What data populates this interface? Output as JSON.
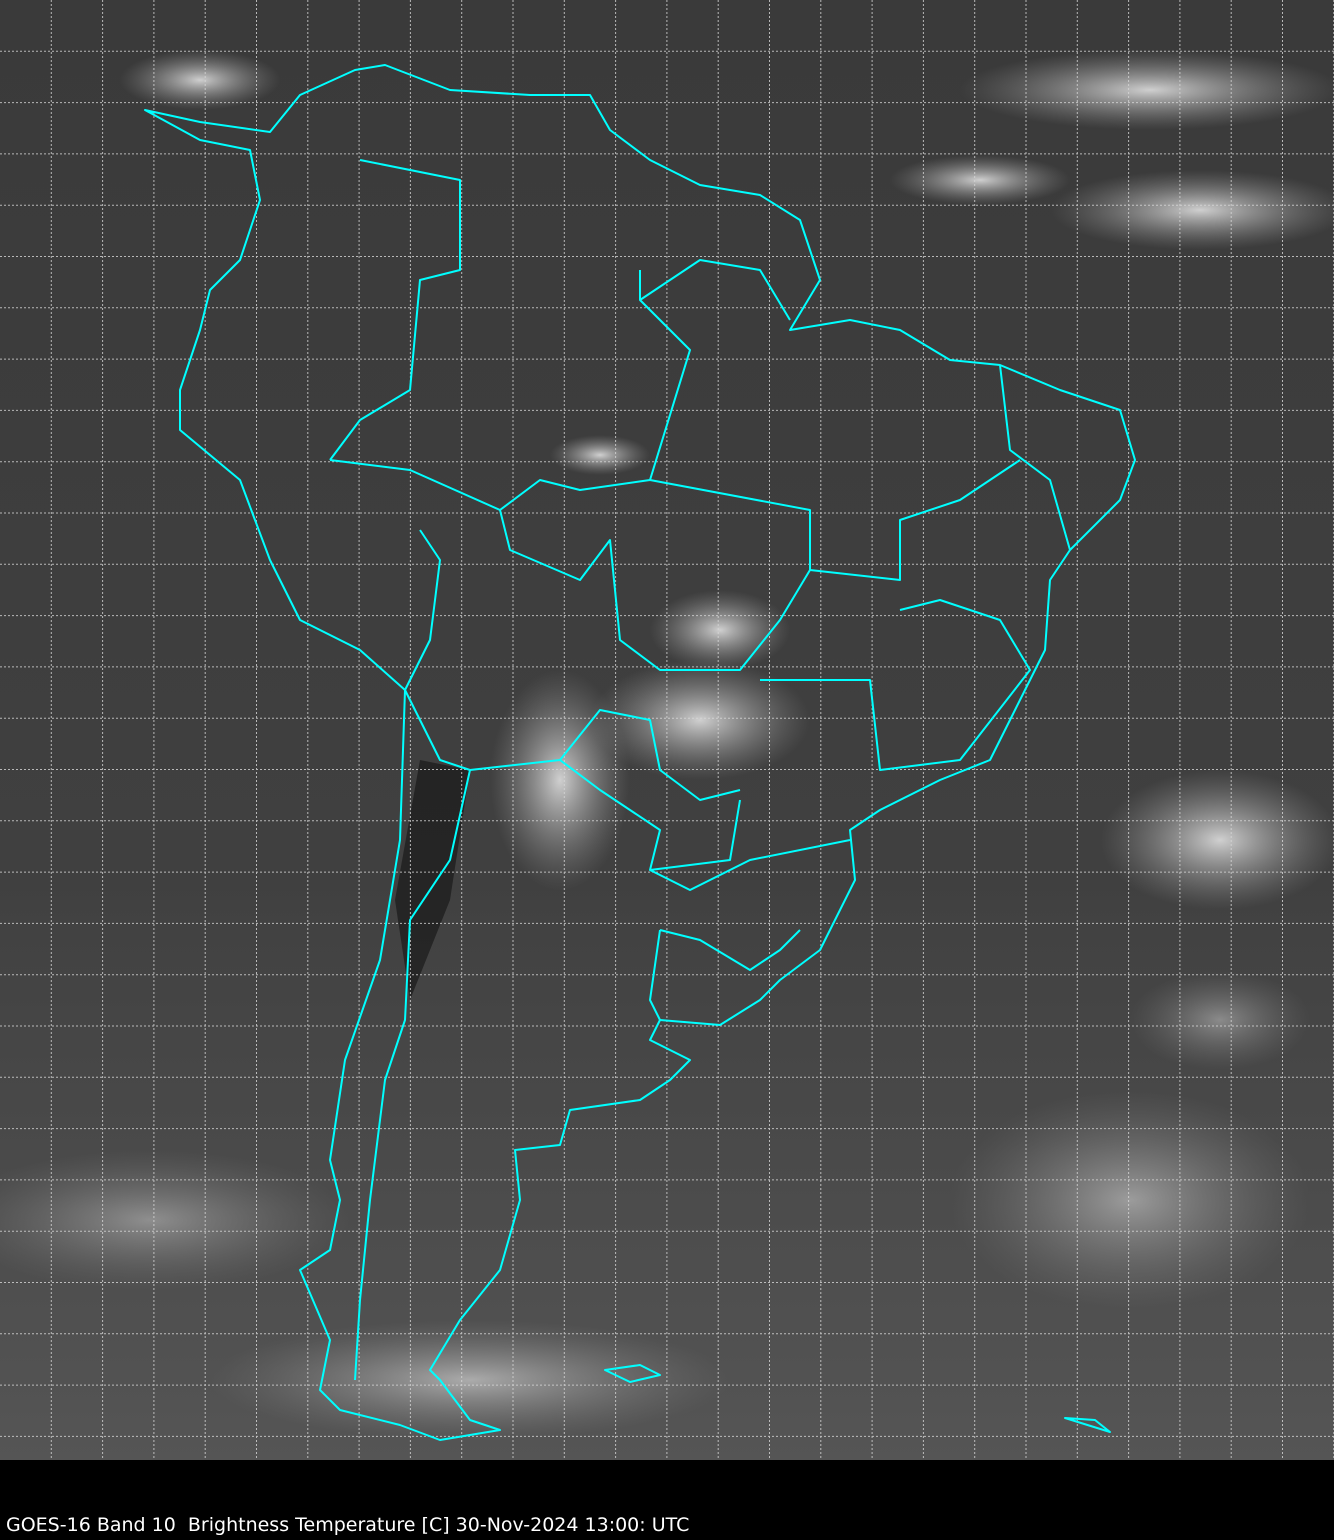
{
  "caption": "GOES-16 Band 10  Brightness Temperature [C] 30-Nov-2024 13:00: UTC",
  "colors": {
    "background": "#3c3c3c",
    "borders": "#00ffff",
    "grid": "#d0d0d0",
    "caption_bar": "#000000"
  },
  "map": {
    "layers": [
      "infrared-imagery",
      "country-borders",
      "state-borders",
      "lat-lon-grid"
    ]
  }
}
